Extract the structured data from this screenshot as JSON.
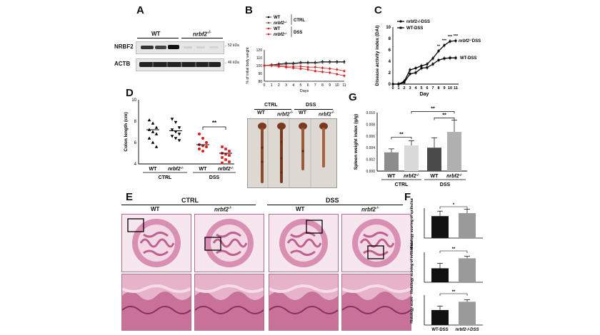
{
  "panels": {
    "a": {
      "letter": "A",
      "col_wt": "WT",
      "col_ko": "nrbf2",
      "col_ko_sup": "-/-",
      "rows": [
        {
          "label": "NRBF2",
          "mw": "52 kDa"
        },
        {
          "label": "ACTB",
          "mw": "46 kDa"
        }
      ]
    },
    "b": {
      "letter": "B",
      "ylabel": "% of initial body weight",
      "xlabel": "Days",
      "legend": [
        {
          "label": "WT",
          "group": "CTRL"
        },
        {
          "label": "nrbf2",
          "sup": "-/-",
          "group": "CTRL"
        },
        {
          "label": "WT",
          "group": "DSS"
        },
        {
          "label": "nrbf2",
          "sup": "-/-",
          "group": "DSS"
        }
      ],
      "group_ctrl": "CTRL",
      "group_dss": "DSS"
    },
    "c": {
      "letter": "C",
      "ylabel": "Disease activity index (DAI)",
      "xlabel": "Day",
      "legend": [
        "nrbf2-/-DSS",
        "WT-DSS"
      ],
      "sig": [
        "**",
        "***",
        "***",
        "***"
      ],
      "line_label_ko": "nrbf2",
      "line_label_ko_sup": "-/-",
      "line_label_ko_suffix": "DSS",
      "line_label_wt": "WT-DSS"
    },
    "d": {
      "letter": "D",
      "ylabel": "Colon length (cm)",
      "groups": [
        "WT",
        "nrbf2",
        "WT",
        "nrbf2"
      ],
      "sup": "-/-",
      "group_ctrl": "CTRL",
      "group_dss": "DSS",
      "sig": "**"
    },
    "photo": {
      "ctrl": "CTRL",
      "dss": "DSS",
      "cols": [
        "WT",
        "nrbf2",
        "WT",
        "nrbf2"
      ],
      "sup": "-/-"
    },
    "e": {
      "letter": "E",
      "ctrl": "CTRL",
      "dss": "DSS",
      "cols": [
        "WT",
        "nrbf2",
        "WT",
        "nrbf2"
      ],
      "sup": "-/-"
    },
    "f": {
      "letter": "F",
      "sub": [
        {
          "ylabel": "Histology scoring of epithelium",
          "sig": "*"
        },
        {
          "ylabel": "Histology scoring of infiltration",
          "sig": "**"
        },
        {
          "ylabel": "Histology score",
          "sig": "**"
        }
      ],
      "xlabels": [
        "WT-DSS",
        "nrbf2-/-DSS"
      ]
    },
    "g": {
      "letter": "G",
      "ylabel": "Spleen weight index (g/g)",
      "groups": [
        "WT",
        "nrbf2",
        "WT",
        "nrbf2"
      ],
      "sup": "-/-",
      "group_ctrl": "CTRL",
      "group_dss": "DSS",
      "sig": [
        "**",
        "**",
        "**"
      ]
    }
  },
  "chart_data": [
    {
      "id": "B",
      "type": "line",
      "xlabel": "Days",
      "ylabel": "% of initial body weight",
      "x": [
        0,
        1,
        2,
        3,
        4,
        5,
        6,
        7,
        8,
        9,
        10,
        11
      ],
      "ylim": [
        80,
        120
      ],
      "yticks": [
        80,
        90,
        100,
        110,
        120
      ],
      "series": [
        {
          "name": "WT CTRL",
          "values": [
            100,
            101,
            102,
            103,
            103,
            104,
            104,
            104,
            105,
            105,
            105,
            105
          ]
        },
        {
          "name": "nrbf2-/- CTRL",
          "values": [
            100,
            101,
            101,
            102,
            102,
            103,
            103,
            103,
            104,
            104,
            104,
            104
          ]
        },
        {
          "name": "WT DSS",
          "values": [
            100,
            100,
            100,
            99,
            99,
            99,
            98,
            98,
            97,
            96,
            95,
            93
          ]
        },
        {
          "name": "nrbf2-/- DSS",
          "values": [
            100,
            100,
            99,
            98,
            97,
            96,
            95,
            93,
            92,
            91,
            89,
            87
          ]
        }
      ]
    },
    {
      "id": "C",
      "type": "line",
      "xlabel": "Day",
      "ylabel": "Disease activity index (DAI)",
      "x": [
        0,
        1,
        2,
        3,
        4,
        5,
        6,
        7,
        8,
        9,
        10,
        11
      ],
      "ylim": [
        0,
        10
      ],
      "yticks": [
        0,
        2,
        4,
        6,
        8,
        10
      ],
      "series": [
        {
          "name": "nrbf2-/-DSS",
          "values": [
            0,
            0,
            0.5,
            2.5,
            2.8,
            3.2,
            3.5,
            4.5,
            5.8,
            6.8,
            7.5,
            7.6
          ]
        },
        {
          "name": "WT-DSS",
          "values": [
            0,
            0,
            0.3,
            1.8,
            2.0,
            2.8,
            2.9,
            3.5,
            4.2,
            4.5,
            4.6,
            4.6
          ]
        }
      ]
    },
    {
      "id": "D",
      "type": "scatter",
      "ylabel": "Colon length (cm)",
      "ylim": [
        4,
        10
      ],
      "yticks": [
        4,
        6,
        8,
        10
      ],
      "categories": [
        "WT CTRL",
        "nrbf2-/- CTRL",
        "WT DSS",
        "nrbf2-/- DSS"
      ],
      "points": [
        [
          8.1,
          7.8,
          7.4,
          7.2,
          7.0,
          6.8,
          6.4,
          6.0,
          5.6
        ],
        [
          8.2,
          7.9,
          7.4,
          7.2,
          7.0,
          6.8,
          6.6,
          6.4,
          6.2
        ],
        [
          6.8,
          6.4,
          6.0,
          5.8,
          5.7,
          5.6,
          5.4,
          5.2
        ],
        [
          5.6,
          5.4,
          5.2,
          5.0,
          4.9,
          4.8,
          4.6,
          4.4,
          4.2,
          4.1
        ]
      ],
      "means": [
        7.2,
        7.1,
        5.8,
        5.0
      ]
    },
    {
      "id": "G",
      "type": "bar",
      "ylabel": "Spleen weight index (g/g)",
      "ylim": [
        0,
        0.01
      ],
      "yticks": [
        0.0,
        0.002,
        0.004,
        0.006,
        0.008,
        0.01
      ],
      "categories": [
        "WT CTRL",
        "nrbf2-/- CTRL",
        "WT DSS",
        "nrbf2-/- DSS"
      ],
      "values": [
        0.0032,
        0.0044,
        0.004,
        0.0067
      ],
      "errors": [
        0.0006,
        0.0008,
        0.0017,
        0.002
      ]
    },
    {
      "id": "F1",
      "type": "bar",
      "ylabel": "Histology scoring of epithelium",
      "categories": [
        "WT-DSS",
        "nrbf2-/-DSS"
      ],
      "values": [
        2.2,
        2.5
      ],
      "errors": [
        0.5,
        0.4
      ],
      "ylim": [
        0,
        3
      ]
    },
    {
      "id": "F2",
      "type": "bar",
      "ylabel": "Histology scoring of infiltration",
      "categories": [
        "WT-DSS",
        "nrbf2-/-DSS"
      ],
      "values": [
        1.4,
        2.4
      ],
      "errors": [
        0.5,
        0.2
      ],
      "ylim": [
        0,
        3
      ]
    },
    {
      "id": "F3",
      "type": "bar",
      "ylabel": "Histology score",
      "categories": [
        "WT-DSS",
        "nrbf2-/-DSS"
      ],
      "values": [
        4.5,
        7.0
      ],
      "errors": [
        1.2,
        0.6
      ],
      "ylim": [
        0,
        9
      ]
    }
  ]
}
